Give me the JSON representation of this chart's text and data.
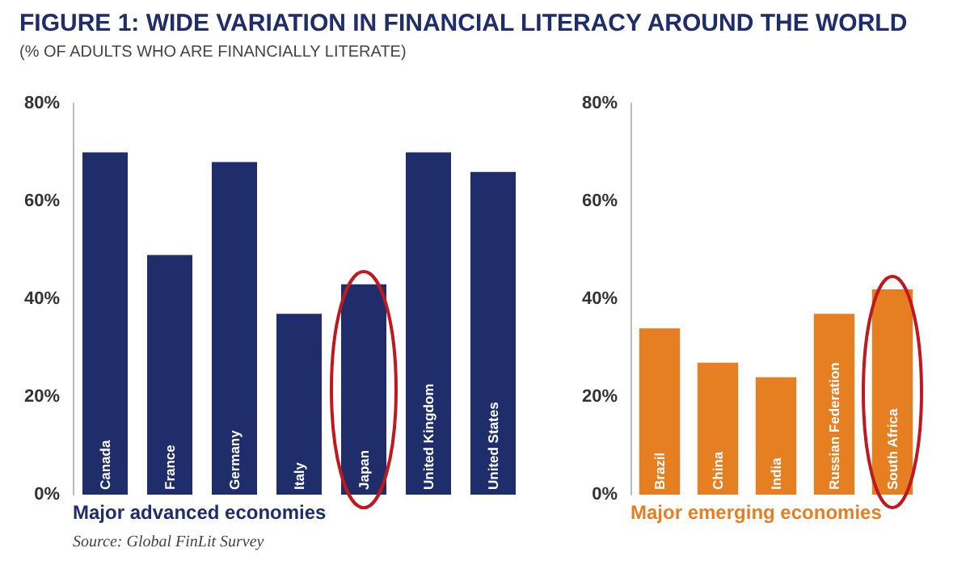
{
  "chart_data": [
    {
      "type": "bar",
      "title": "FIGURE 1: WIDE VARIATION IN FINANCIAL LITERACY AROUND THE WORLD",
      "subtitle": "(% OF ADULTS WHO ARE FINANCIALLY LITERATE)",
      "xlabel": "Major advanced economies",
      "categories": [
        "Canada",
        "France",
        "Germany",
        "Italy",
        "Japan",
        "United Kingdom",
        "United States"
      ],
      "values": [
        70,
        49,
        68,
        37,
        43,
        70,
        66
      ],
      "color": "#1f2d6b",
      "ylim": [
        0,
        80
      ],
      "yticks": [
        {
          "value": 0,
          "label": "0%"
        },
        {
          "value": 20,
          "label": "20%"
        },
        {
          "value": 40,
          "label": "40%"
        },
        {
          "value": 60,
          "label": "60%"
        },
        {
          "value": 80,
          "label": "80%"
        }
      ],
      "grid": false,
      "annotations": [
        "Source: Global FinLit Survey"
      ]
    },
    {
      "type": "bar",
      "xlabel": "Major emerging economies",
      "categories": [
        "Brazil",
        "China",
        "India",
        "Russian Federation",
        "South Africa"
      ],
      "values": [
        34,
        27,
        24,
        37,
        42
      ],
      "color": "#e67e22",
      "ylim": [
        0,
        80
      ],
      "yticks": [
        {
          "value": 0,
          "label": "0%"
        },
        {
          "value": 20,
          "label": "20%"
        },
        {
          "value": 40,
          "label": "40%"
        },
        {
          "value": 60,
          "label": "60%"
        },
        {
          "value": 80,
          "label": "80%"
        }
      ],
      "grid": false
    }
  ]
}
